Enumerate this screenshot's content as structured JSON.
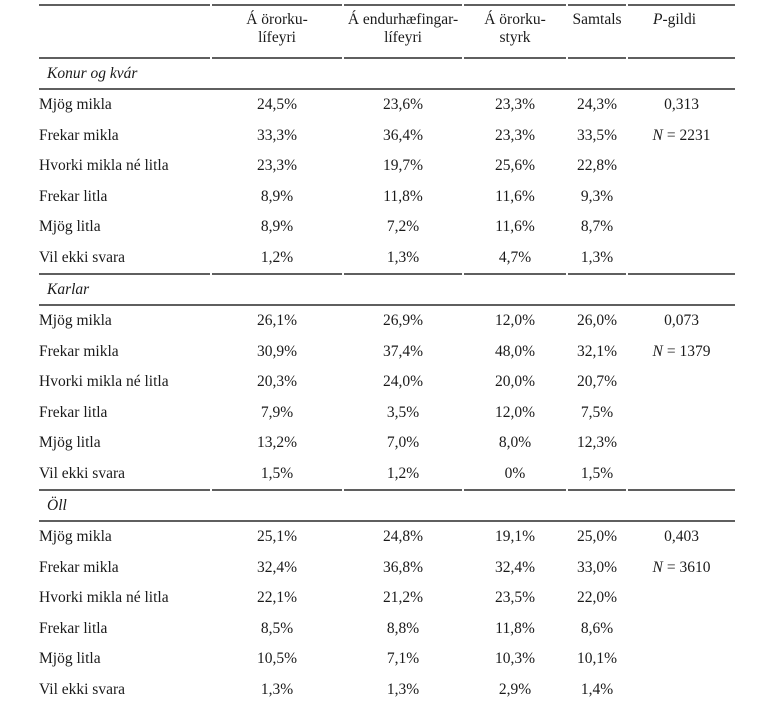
{
  "colors": {
    "rule": "#5f5f5f",
    "text": "#1a1a1a",
    "background": "#ffffff"
  },
  "header": {
    "cols": [
      {
        "line1": "Á örorku-",
        "line2": "lífeyri"
      },
      {
        "line1": "Á endurhæfingar-",
        "line2": "lífeyri"
      },
      {
        "line1": "Á örorku-",
        "line2": "styrk"
      },
      {
        "line1": "Samtals",
        "line2": ""
      },
      {
        "italic": "P",
        "rest": "-gildi"
      }
    ]
  },
  "sections": [
    {
      "title": "Konur og kvár",
      "p_value": "0,313",
      "n_italic": "N",
      "n_rest": "= 2231",
      "rows": [
        {
          "label": "Mjög mikla",
          "values": [
            "24,5%",
            "23,6%",
            "23,3%",
            "24,3%"
          ]
        },
        {
          "label": "Frekar mikla",
          "values": [
            "33,3%",
            "36,4%",
            "23,3%",
            "33,5%"
          ]
        },
        {
          "label": "Hvorki mikla né litla",
          "values": [
            "23,3%",
            "19,7%",
            "25,6%",
            "22,8%"
          ]
        },
        {
          "label": "Frekar litla",
          "values": [
            "8,9%",
            "11,8%",
            "11,6%",
            "9,3%"
          ]
        },
        {
          "label": "Mjög litla",
          "values": [
            "8,9%",
            "7,2%",
            "11,6%",
            "8,7%"
          ]
        },
        {
          "label": "Vil ekki svara",
          "values": [
            "1,2%",
            "1,3%",
            "4,7%",
            "1,3%"
          ]
        }
      ]
    },
    {
      "title": "Karlar",
      "p_value": "0,073",
      "n_italic": "N",
      "n_rest": "= 1379",
      "rows": [
        {
          "label": "Mjög mikla",
          "values": [
            "26,1%",
            "26,9%",
            "12,0%",
            "26,0%"
          ]
        },
        {
          "label": "Frekar mikla",
          "values": [
            "30,9%",
            "37,4%",
            "48,0%",
            "32,1%"
          ]
        },
        {
          "label": "Hvorki mikla né litla",
          "values": [
            "20,3%",
            "24,0%",
            "20,0%",
            "20,7%"
          ]
        },
        {
          "label": "Frekar litla",
          "values": [
            "7,9%",
            "3,5%",
            "12,0%",
            "7,5%"
          ]
        },
        {
          "label": "Mjög litla",
          "values": [
            "13,2%",
            "7,0%",
            "8,0%",
            "12,3%"
          ]
        },
        {
          "label": "Vil ekki svara",
          "values": [
            "1,5%",
            "1,2%",
            "0%",
            "1,5%"
          ]
        }
      ]
    },
    {
      "title": "Öll",
      "p_value": "0,403",
      "n_italic": "N",
      "n_rest": "= 3610",
      "rows": [
        {
          "label": "Mjög mikla",
          "values": [
            "25,1%",
            "24,8%",
            "19,1%",
            "25,0%"
          ]
        },
        {
          "label": "Frekar mikla",
          "values": [
            "32,4%",
            "36,8%",
            "32,4%",
            "33,0%"
          ]
        },
        {
          "label": "Hvorki mikla né litla",
          "values": [
            "22,1%",
            "21,2%",
            "23,5%",
            "22,0%"
          ]
        },
        {
          "label": "Frekar litla",
          "values": [
            "8,5%",
            "8,8%",
            "11,8%",
            "8,6%"
          ]
        },
        {
          "label": "Mjög litla",
          "values": [
            "10,5%",
            "7,1%",
            "10,3%",
            "10,1%"
          ]
        },
        {
          "label": "Vil ekki svara",
          "values": [
            "1,3%",
            "1,3%",
            "2,9%",
            "1,4%"
          ]
        }
      ]
    }
  ]
}
